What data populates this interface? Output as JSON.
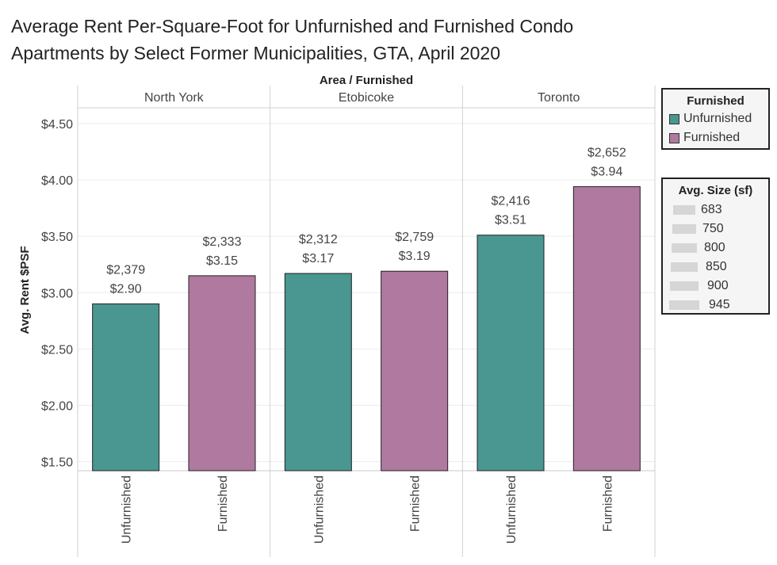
{
  "title_line1": "Average Rent Per-Square-Foot for Unfurnished and Furnished Condo",
  "title_line2": "Apartments by Select Former Municipalities, GTA, April 2020",
  "chart_data": {
    "type": "bar",
    "header": "Area / Furnished",
    "ylabel": "Avg. Rent $PSF",
    "ylim": [
      1.42,
      4.64
    ],
    "yticks": [
      1.5,
      2.0,
      2.5,
      3.0,
      3.5,
      4.0,
      4.5
    ],
    "ytick_labels": [
      "$1.50",
      "$2.00",
      "$2.50",
      "$3.00",
      "$3.50",
      "$4.00",
      "$4.50"
    ],
    "panels": [
      {
        "area": "North York",
        "bars": [
          {
            "category": "Unfurnished",
            "value": 2.9,
            "value_label": "$2.90",
            "rent_label": "$2,379"
          },
          {
            "category": "Furnished",
            "value": 3.15,
            "value_label": "$3.15",
            "rent_label": "$2,333"
          }
        ]
      },
      {
        "area": "Etobicoke",
        "bars": [
          {
            "category": "Unfurnished",
            "value": 3.17,
            "value_label": "$3.17",
            "rent_label": "$2,312"
          },
          {
            "category": "Furnished",
            "value": 3.19,
            "value_label": "$3.19",
            "rent_label": "$2,759"
          }
        ]
      },
      {
        "area": "Toronto",
        "bars": [
          {
            "category": "Unfurnished",
            "value": 3.51,
            "value_label": "$3.51",
            "rent_label": "$2,416"
          },
          {
            "category": "Furnished",
            "value": 3.94,
            "value_label": "$3.94",
            "rent_label": "$2,652"
          }
        ]
      }
    ],
    "colors": {
      "Unfurnished": "#4a9690",
      "Furnished": "#b0799f"
    },
    "legend_color": {
      "title": "Furnished",
      "items": [
        {
          "label": "Unfurnished",
          "color": "#4a9690"
        },
        {
          "label": "Furnished",
          "color": "#b0799f"
        }
      ]
    },
    "legend_size": {
      "title": "Avg. Size (sf)",
      "items": [
        "683",
        "750",
        "800",
        "850",
        "900",
        "945"
      ]
    },
    "grid": true,
    "legend_placement": "right"
  }
}
